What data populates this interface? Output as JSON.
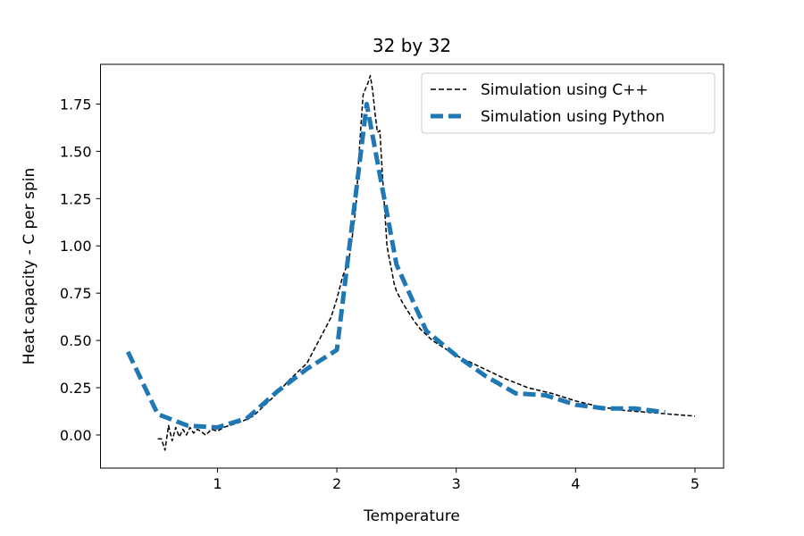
{
  "chart_data": {
    "type": "line",
    "title": "32 by 32",
    "xlabel": "Temperature",
    "ylabel": "Heat capacity - C per spin",
    "xlim": [
      0.02,
      5.24
    ],
    "ylim": [
      -0.175,
      1.96
    ],
    "xticks": [
      1,
      2,
      3,
      4,
      5
    ],
    "xtick_labels": [
      "1",
      "2",
      "3",
      "4",
      "5"
    ],
    "yticks": [
      0.0,
      0.25,
      0.5,
      0.75,
      1.0,
      1.25,
      1.5,
      1.75
    ],
    "ytick_labels": [
      "0.00",
      "0.25",
      "0.50",
      "0.75",
      "1.00",
      "1.25",
      "1.50",
      "1.75"
    ],
    "legend_position": "top-right",
    "series": [
      {
        "name": "Simulation using C++",
        "color": "#000000",
        "style": "dashed-thin",
        "x": [
          0.5,
          0.53,
          0.56,
          0.59,
          0.62,
          0.65,
          0.68,
          0.71,
          0.74,
          0.77,
          0.8,
          0.83,
          0.86,
          0.9,
          0.95,
          1.0,
          1.05,
          1.1,
          1.2,
          1.3,
          1.4,
          1.5,
          1.6,
          1.7,
          1.75,
          1.8,
          1.85,
          1.9,
          1.95,
          2.0,
          2.05,
          2.1,
          2.13,
          2.16,
          2.18,
          2.2,
          2.22,
          2.24,
          2.26,
          2.28,
          2.3,
          2.32,
          2.34,
          2.36,
          2.38,
          2.4,
          2.42,
          2.44,
          2.46,
          2.48,
          2.5,
          2.55,
          2.6,
          2.65,
          2.7,
          2.8,
          2.9,
          3.0,
          3.2,
          3.4,
          3.6,
          3.8,
          4.0,
          4.2,
          4.4,
          4.6,
          4.8,
          5.0
        ],
        "y": [
          -0.02,
          -0.02,
          -0.08,
          0.05,
          -0.03,
          0.04,
          -0.01,
          0.03,
          0.0,
          0.04,
          0.01,
          0.03,
          0.02,
          0.0,
          0.03,
          0.02,
          0.04,
          0.05,
          0.07,
          0.1,
          0.16,
          0.22,
          0.29,
          0.35,
          0.38,
          0.44,
          0.5,
          0.56,
          0.62,
          0.72,
          0.84,
          0.92,
          1.05,
          1.2,
          1.42,
          1.62,
          1.8,
          1.83,
          1.86,
          1.9,
          1.82,
          1.7,
          1.6,
          1.61,
          1.4,
          1.2,
          1.0,
          0.93,
          0.87,
          0.8,
          0.76,
          0.7,
          0.65,
          0.6,
          0.56,
          0.5,
          0.46,
          0.42,
          0.36,
          0.3,
          0.25,
          0.22,
          0.18,
          0.15,
          0.13,
          0.12,
          0.11,
          0.1
        ]
      },
      {
        "name": "Simulation using Python",
        "color": "#1f77b4",
        "style": "dashed-thick",
        "x": [
          0.25,
          0.5,
          0.75,
          1.0,
          1.25,
          1.5,
          1.75,
          2.0,
          2.25,
          2.5,
          2.75,
          3.0,
          3.25,
          3.5,
          3.75,
          4.0,
          4.25,
          4.5,
          4.75
        ],
        "y": [
          0.44,
          0.11,
          0.05,
          0.04,
          0.09,
          0.23,
          0.35,
          0.45,
          1.75,
          0.9,
          0.55,
          0.42,
          0.31,
          0.22,
          0.21,
          0.16,
          0.14,
          0.14,
          0.12
        ]
      }
    ]
  }
}
